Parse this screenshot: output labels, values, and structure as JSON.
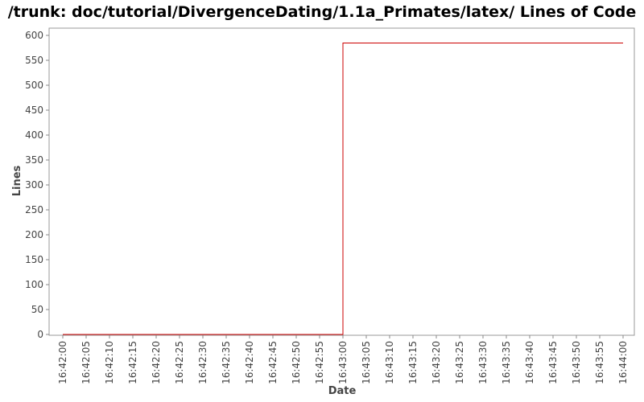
{
  "chart_data": {
    "type": "line",
    "title": "/trunk: doc/tutorial/DivergenceDating/1.1a_Primates/latex/ Lines of Code",
    "xlabel": "Date",
    "ylabel": "Lines",
    "ylim": [
      0,
      600
    ],
    "y_ticks": [
      "0",
      "50",
      "100",
      "150",
      "200",
      "250",
      "300",
      "350",
      "400",
      "450",
      "500",
      "550",
      "600"
    ],
    "x_ticks": [
      "16:42:00",
      "16:42:05",
      "16:42:10",
      "16:42:15",
      "16:42:20",
      "16:42:25",
      "16:42:30",
      "16:42:35",
      "16:42:40",
      "16:42:45",
      "16:42:50",
      "16:42:55",
      "16:43:00",
      "16:43:05",
      "16:43:10",
      "16:43:15",
      "16:43:20",
      "16:43:25",
      "16:43:30",
      "16:43:35",
      "16:43:40",
      "16:43:45",
      "16:43:50",
      "16:43:55",
      "16:44:00"
    ],
    "grid": false,
    "series": [
      {
        "step": true,
        "color": "#cc0000",
        "points": [
          {
            "x": "16:42:00",
            "y": 0
          },
          {
            "x": "16:43:00",
            "y": 0
          },
          {
            "x": "16:43:00",
            "y": 585
          },
          {
            "x": "16:44:00",
            "y": 585
          }
        ]
      }
    ]
  }
}
